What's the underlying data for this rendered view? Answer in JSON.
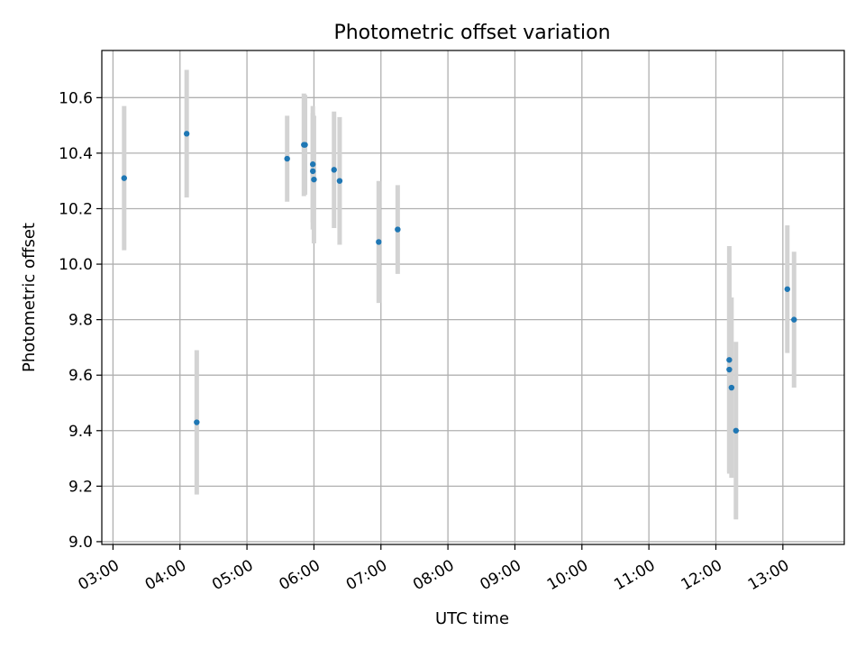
{
  "chart_data": {
    "type": "scatter",
    "title": "Photometric offset variation",
    "xlabel": "UTC time",
    "ylabel": "Photometric offset",
    "x_tick_labels": [
      "03:00",
      "04:00",
      "05:00",
      "06:00",
      "07:00",
      "08:00",
      "09:00",
      "10:00",
      "11:00",
      "12:00",
      "13:00"
    ],
    "y_tick_labels": [
      "9.0",
      "9.2",
      "9.4",
      "9.6",
      "9.8",
      "10.0",
      "10.2",
      "10.4",
      "10.6"
    ],
    "xlim": [
      "02:50",
      "13:55"
    ],
    "ylim": [
      8.99,
      10.77
    ],
    "grid": true,
    "colors": {
      "marker": "#1f77b4",
      "errorbar": "#d3d3d3",
      "grid": "#b0b0b0"
    },
    "points": [
      {
        "x": "03:10",
        "y": 10.31,
        "yerr": 0.26
      },
      {
        "x": "04:06",
        "y": 10.47,
        "yerr": 0.23
      },
      {
        "x": "04:15",
        "y": 9.43,
        "yerr": 0.26
      },
      {
        "x": "05:36",
        "y": 10.38,
        "yerr": 0.155
      },
      {
        "x": "05:51",
        "y": 10.43,
        "yerr": 0.185
      },
      {
        "x": "05:52",
        "y": 10.43,
        "yerr": 0.18
      },
      {
        "x": "05:59",
        "y": 10.36,
        "yerr": 0.21
      },
      {
        "x": "05:59",
        "y": 10.335,
        "yerr": 0.21
      },
      {
        "x": "06:00",
        "y": 10.305,
        "yerr": 0.23
      },
      {
        "x": "06:18",
        "y": 10.34,
        "yerr": 0.21
      },
      {
        "x": "06:23",
        "y": 10.3,
        "yerr": 0.23
      },
      {
        "x": "06:58",
        "y": 10.08,
        "yerr": 0.22
      },
      {
        "x": "07:15",
        "y": 10.125,
        "yerr": 0.16
      },
      {
        "x": "12:12",
        "y": 9.655,
        "yerr": 0.41
      },
      {
        "x": "12:12",
        "y": 9.62,
        "yerr": 0.37
      },
      {
        "x": "12:14",
        "y": 9.555,
        "yerr": 0.325
      },
      {
        "x": "12:18",
        "y": 9.4,
        "yerr": 0.32
      },
      {
        "x": "13:04",
        "y": 9.91,
        "yerr": 0.23
      },
      {
        "x": "13:10",
        "y": 9.8,
        "yerr": 0.245
      }
    ]
  }
}
